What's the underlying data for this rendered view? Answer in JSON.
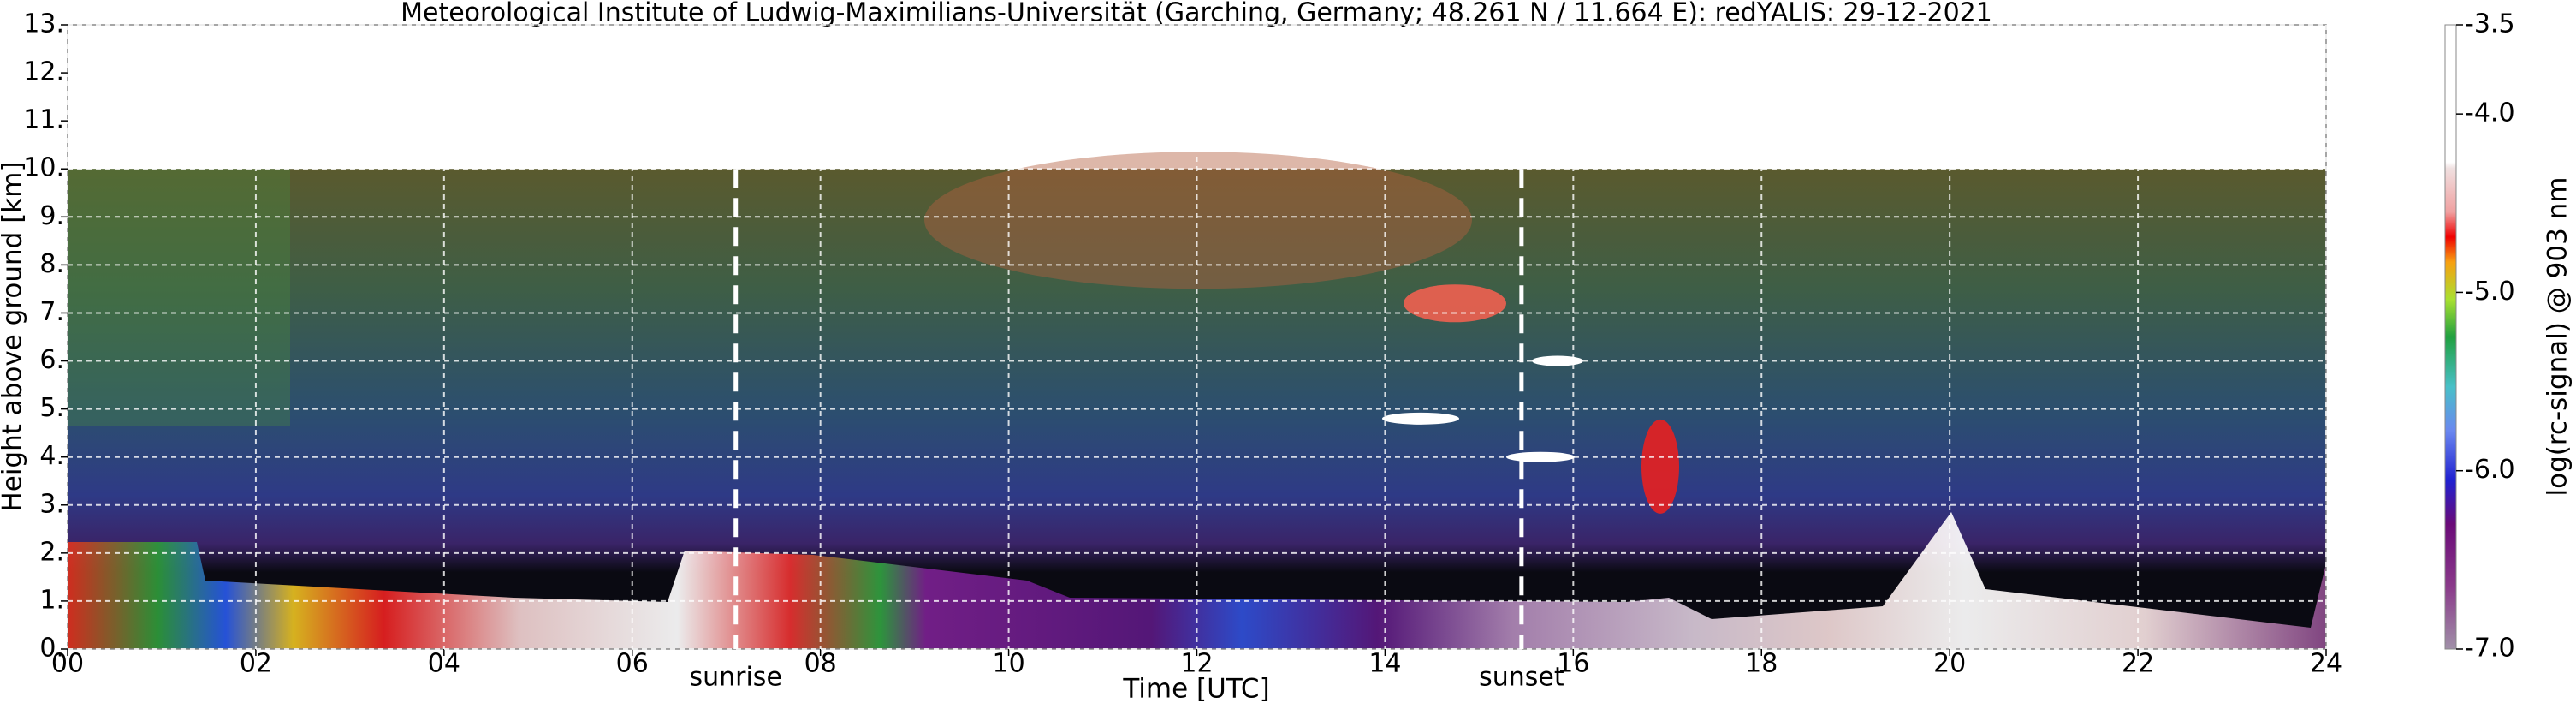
{
  "chart_data": {
    "type": "heatmap",
    "title": "Meteorological Institute of Ludwig-Maximilians-Universität (Garching, Germany; 48.261 N / 11.664 E):    redYALIS: 29-12-2021",
    "x_label": "Time [UTC]",
    "y_label": "Height above ground [km]",
    "xlim": [
      0,
      24
    ],
    "xticks": [
      {
        "value": 0,
        "label": "00"
      },
      {
        "value": 2,
        "label": "02"
      },
      {
        "value": 4,
        "label": "04"
      },
      {
        "value": 6,
        "label": "06"
      },
      {
        "value": 8,
        "label": "08"
      },
      10,
      12,
      14,
      16,
      18,
      20,
      22,
      24
    ],
    "ylim": [
      0,
      13
    ],
    "yticks": [
      {
        "value": 0,
        "label": "0."
      },
      {
        "value": 1,
        "label": "1."
      },
      {
        "value": 2,
        "label": "2."
      },
      {
        "value": 3,
        "label": "3."
      },
      {
        "value": 4,
        "label": "4."
      },
      {
        "value": 5,
        "label": "5."
      },
      {
        "value": 6,
        "label": "6."
      },
      {
        "value": 7,
        "label": "7."
      },
      {
        "value": 8,
        "label": "8."
      },
      {
        "value": 9,
        "label": "9."
      },
      {
        "value": 10,
        "label": "10."
      },
      {
        "value": 11,
        "label": "11."
      },
      {
        "value": 12,
        "label": "12."
      },
      {
        "value": 13,
        "label": "13."
      }
    ],
    "grid": true,
    "colorbar": {
      "label": "log(rc-signal) @ 903 nm",
      "lim": [
        -7.0,
        -3.5
      ],
      "ticks": [
        -3.5,
        {
          "value": -4.0,
          "label": "-4.0"
        },
        {
          "value": -5.0,
          "label": "-5.0"
        },
        {
          "value": -6.0,
          "label": "-6.0"
        },
        {
          "value": -7.0,
          "label": "-7.0"
        }
      ]
    },
    "annotations": [
      {
        "text": "sunrise",
        "x": 7.1
      },
      {
        "text": "sunset",
        "x": 15.45
      }
    ]
  }
}
